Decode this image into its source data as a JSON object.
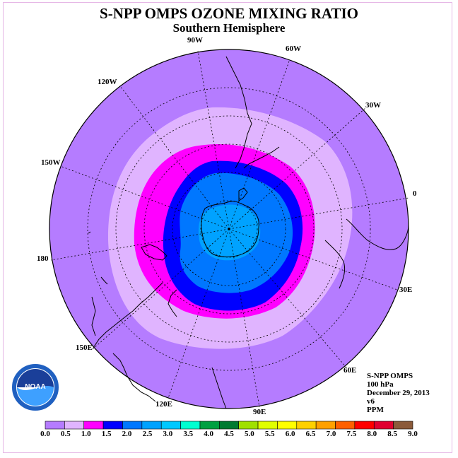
{
  "title": "S-NPP OMPS OZONE MIXING RATIO",
  "subtitle": "Southern Hemisphere",
  "longitudes": [
    "90W",
    "60W",
    "30W",
    "0",
    "30E",
    "60E",
    "90E",
    "120E",
    "150E",
    "180",
    "150W",
    "120W"
  ],
  "info": {
    "instrument": "S-NPP OMPS",
    "level": "100 hPa",
    "date": "December 29, 2013",
    "version": "v6",
    "units": "PPM"
  },
  "colorbar": {
    "ticks": [
      "0.0",
      "0.5",
      "1.0",
      "1.5",
      "2.0",
      "2.5",
      "3.0",
      "3.5",
      "4.0",
      "4.5",
      "5.0",
      "5.5",
      "6.0",
      "6.5",
      "7.0",
      "7.5",
      "8.0",
      "8.5",
      "9.0"
    ],
    "colors": [
      "#b57cff",
      "#e0b4ff",
      "#ff00ff",
      "#0000ff",
      "#0077ff",
      "#00a2ff",
      "#00c8ff",
      "#00ffd0",
      "#00a040",
      "#007a30",
      "#a0e000",
      "#e0ff00",
      "#ffff00",
      "#ffd000",
      "#ffa000",
      "#ff6000",
      "#ff0000",
      "#e00030",
      "#8b5a3a"
    ]
  },
  "logo": {
    "text": "NOAA"
  }
}
